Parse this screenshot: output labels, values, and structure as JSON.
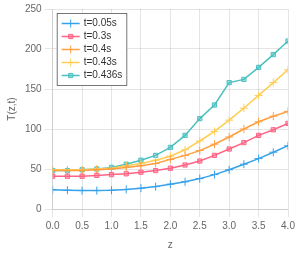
{
  "chart_data": {
    "type": "line",
    "xlabel": "z",
    "ylabel": "T(z,t)",
    "x": [
      0,
      0.25,
      0.5,
      0.75,
      1.0,
      1.25,
      1.5,
      1.75,
      2.0,
      2.25,
      2.5,
      2.75,
      3.0,
      3.25,
      3.5,
      3.75,
      4.0
    ],
    "series": [
      {
        "name": "t=0.05s",
        "marker": "plus",
        "values": [
          24,
          23.5,
          23,
          23,
          23.5,
          24.5,
          26,
          28,
          31,
          34,
          38,
          43,
          49,
          56,
          63,
          71,
          79
        ]
      },
      {
        "name": "t=0.3s",
        "marker": "square",
        "values": [
          41,
          41,
          41,
          42,
          43,
          44,
          46,
          48,
          51,
          55,
          60,
          67,
          75,
          83,
          92,
          99,
          107
        ]
      },
      {
        "name": "t=0.4s",
        "marker": "plus",
        "values": [
          48,
          48,
          48,
          49,
          50,
          52,
          54,
          57,
          62,
          67,
          73,
          81,
          90,
          100,
          109,
          116,
          122
        ]
      },
      {
        "name": "t=0.43s",
        "marker": "plus",
        "values": [
          49,
          49,
          49,
          50,
          51,
          54,
          57,
          61,
          66,
          74,
          85,
          97,
          111,
          126,
          142,
          158,
          174
        ]
      },
      {
        "name": "t=0.436s",
        "marker": "square",
        "values": [
          48,
          48,
          49,
          50,
          52,
          56,
          61,
          67,
          77,
          92,
          113,
          130,
          158,
          162,
          177,
          193,
          210
        ]
      }
    ],
    "xlim": [
      0,
      4
    ],
    "ylim": [
      0,
      250
    ],
    "xticks": [
      {
        "value": 0,
        "label": "0.0"
      },
      0.5,
      {
        "value": 1.0,
        "label": "1.0"
      },
      1.5,
      {
        "value": 2.0,
        "label": "2.0"
      },
      2.5,
      {
        "value": 3.0,
        "label": "3.0"
      },
      3.5,
      {
        "value": 4.0,
        "label": "4.0"
      }
    ],
    "yticks": [
      0,
      50,
      100,
      150,
      200,
      250
    ],
    "grid": true,
    "legend": "upper left"
  }
}
